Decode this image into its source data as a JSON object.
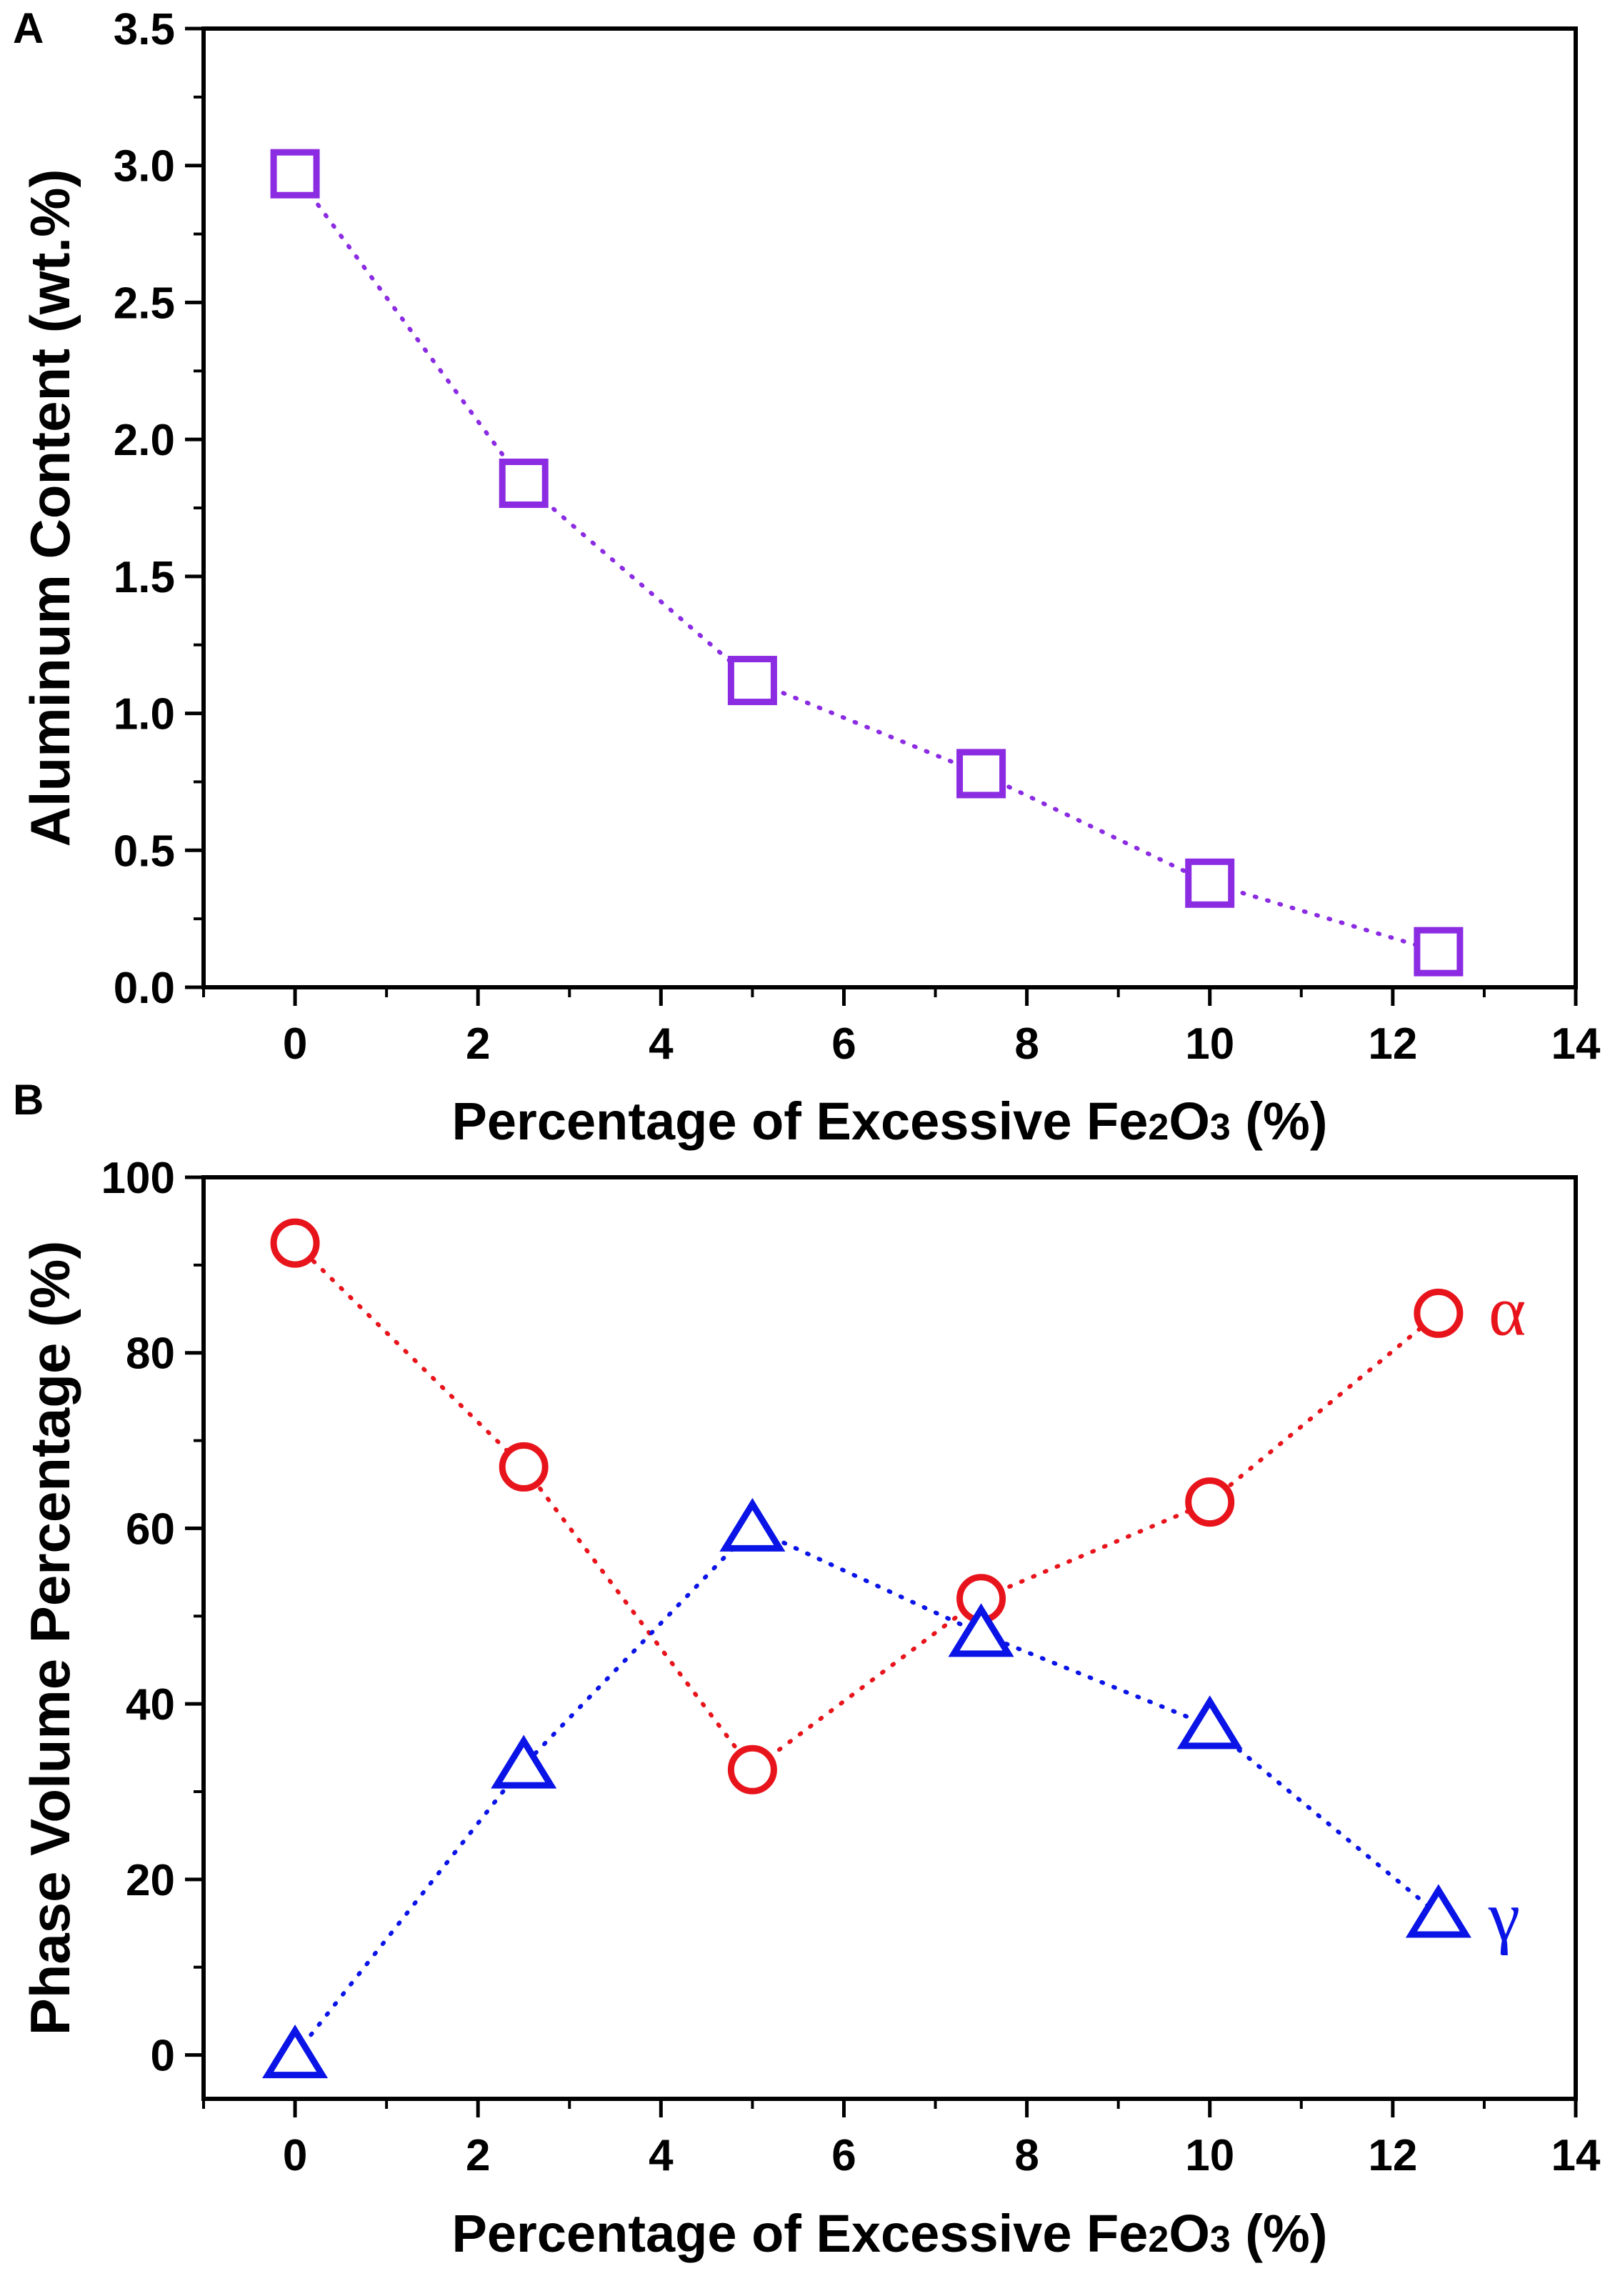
{
  "chart_data": [
    {
      "panel_label": "A",
      "type": "scatter",
      "xlabel_parts": [
        "Percentage of Excessive Fe",
        "2",
        "O",
        "3",
        " (%)"
      ],
      "ylabel": "Aluminum Content (wt.%)",
      "xlim": [
        -1,
        14
      ],
      "ylim": [
        0,
        3.5
      ],
      "x_ticks": [
        0,
        2,
        4,
        6,
        8,
        10,
        12,
        14
      ],
      "x_tick_labels": [
        "0",
        "2",
        "4",
        "6",
        "8",
        "10",
        "12",
        "14"
      ],
      "y_ticks": [
        0,
        0.5,
        1.0,
        1.5,
        2.0,
        2.5,
        3.0,
        3.5
      ],
      "y_tick_labels": [
        "0.0",
        "0.5",
        "1.0",
        "1.5",
        "2.0",
        "2.5",
        "3.0",
        "3.5"
      ],
      "series": [
        {
          "name": "Aluminum Content",
          "marker": "square",
          "color": "#8b2be2",
          "line": "dotted",
          "x": [
            0,
            2.5,
            5,
            7.5,
            10,
            12.5
          ],
          "y": [
            2.97,
            1.84,
            1.12,
            0.78,
            0.38,
            0.13
          ]
        }
      ]
    },
    {
      "panel_label": "B",
      "type": "scatter",
      "xlabel_parts": [
        "Percentage of Excessive Fe",
        "2",
        "O",
        "3",
        " (%)"
      ],
      "ylabel": "Phase Volume Percentage (%)",
      "xlim": [
        -1,
        14
      ],
      "ylim": [
        -5,
        100
      ],
      "x_ticks": [
        0,
        2,
        4,
        6,
        8,
        10,
        12,
        14
      ],
      "x_tick_labels": [
        "0",
        "2",
        "4",
        "6",
        "8",
        "10",
        "12",
        "14"
      ],
      "y_ticks": [
        0,
        20,
        40,
        60,
        80,
        100
      ],
      "y_tick_labels": [
        "0",
        "20",
        "40",
        "60",
        "80",
        "100"
      ],
      "series": [
        {
          "name": "α",
          "marker": "circle",
          "color": "#e8141c",
          "line": "dotted",
          "x": [
            0,
            2.5,
            5,
            7.5,
            10,
            12.5
          ],
          "y": [
            92.5,
            67,
            32.5,
            52,
            63,
            84.5
          ]
        },
        {
          "name": "γ",
          "marker": "triangle",
          "color": "#0a14e6",
          "line": "dotted",
          "x": [
            0,
            2.5,
            5,
            7.5,
            10,
            12.5
          ],
          "y": [
            0,
            33,
            60,
            48,
            37.5,
            16
          ]
        }
      ]
    }
  ]
}
